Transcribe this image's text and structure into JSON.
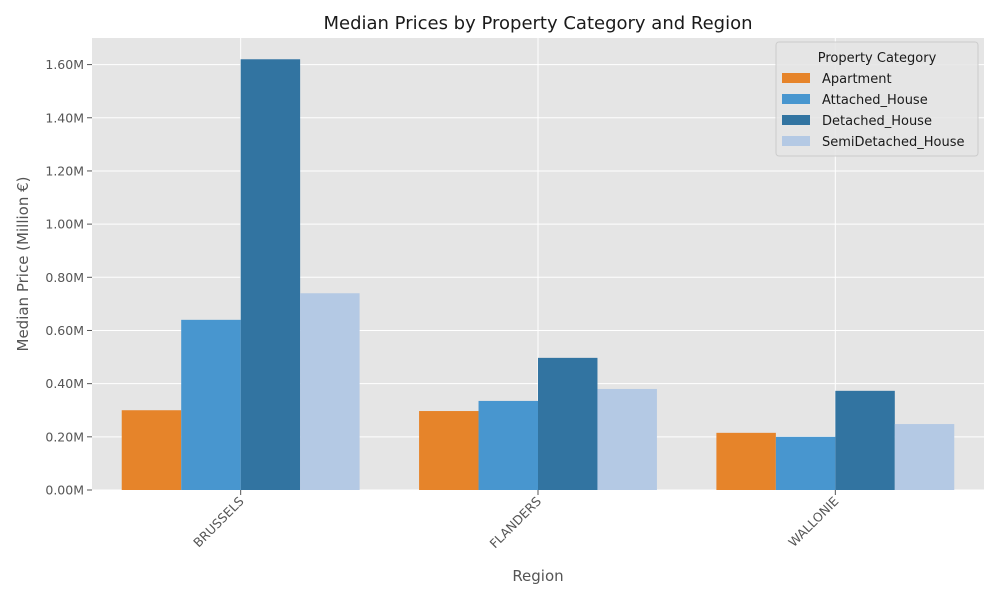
{
  "chart_data": {
    "type": "bar",
    "title": "Median Prices by Property Category and Region",
    "xlabel": "Region",
    "ylabel": "Median Price (Million €)",
    "categories": [
      "BRUSSELS",
      "FLANDERS",
      "WALLONIE"
    ],
    "series": [
      {
        "name": "Apartment",
        "color": "#e6842a",
        "values": [
          0.3,
          0.297,
          0.215
        ]
      },
      {
        "name": "Attached_House",
        "color": "#4896cf",
        "values": [
          0.64,
          0.335,
          0.2
        ]
      },
      {
        "name": "Detached_House",
        "color": "#3274a1",
        "values": [
          1.62,
          0.497,
          0.373
        ]
      },
      {
        "name": "SemiDetached_House",
        "color": "#b4c9e4",
        "values": [
          0.74,
          0.38,
          0.248
        ]
      }
    ],
    "ylim": [
      0,
      1.7
    ],
    "yticks": [
      0,
      0.2,
      0.4,
      0.6,
      0.8,
      1.0,
      1.2,
      1.4,
      1.6
    ],
    "ytick_labels": [
      "0.00M",
      "0.20M",
      "0.40M",
      "0.60M",
      "0.80M",
      "1.00M",
      "1.20M",
      "1.40M",
      "1.60M"
    ],
    "grid": true,
    "legend": {
      "title": "Property Category",
      "placement": "top-right"
    },
    "background_color": "#e5e5e5",
    "grid_color": "#ffffff"
  }
}
